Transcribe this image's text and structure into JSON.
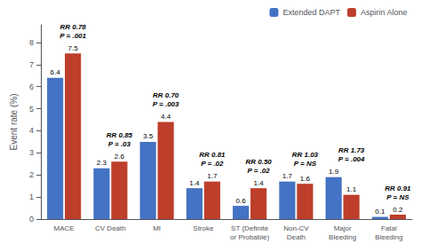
{
  "chart_data": {
    "type": "bar",
    "categories": [
      "MACE",
      "CV Death",
      "MI",
      "Stroke",
      "ST (Definite\nor Probable)",
      "Non-CV\nDeath",
      "Major\nBleeding",
      "Fatal\nBleeding"
    ],
    "series": [
      {
        "name": "Extended DAPT",
        "color": "#4472C4",
        "values": [
          6.4,
          2.3,
          3.5,
          1.4,
          0.6,
          1.7,
          1.9,
          0.1
        ]
      },
      {
        "name": "Aspirin Alone",
        "color": "#BE3E2C",
        "values": [
          7.5,
          2.6,
          4.4,
          1.7,
          1.4,
          1.6,
          1.1,
          0.2
        ]
      }
    ],
    "ylabel": "Event rate (%)",
    "ylim": [
      0,
      8.8
    ],
    "yticks": [
      0,
      1,
      2,
      3,
      4,
      5,
      6,
      7,
      8
    ],
    "grid": false,
    "legend": "upper right",
    "data_labels": true,
    "annotations": [
      "RR 0.78\nP = .001",
      "RR 0.85\nP = .03",
      "RR 0.70\nP = .003",
      "RR 0.81\nP = .02",
      "RR 0.50\nP = .02",
      "RR 1.03\nP = NS",
      "RR 1.73\nP = .004",
      "RR 0.91\nP = NS"
    ]
  }
}
